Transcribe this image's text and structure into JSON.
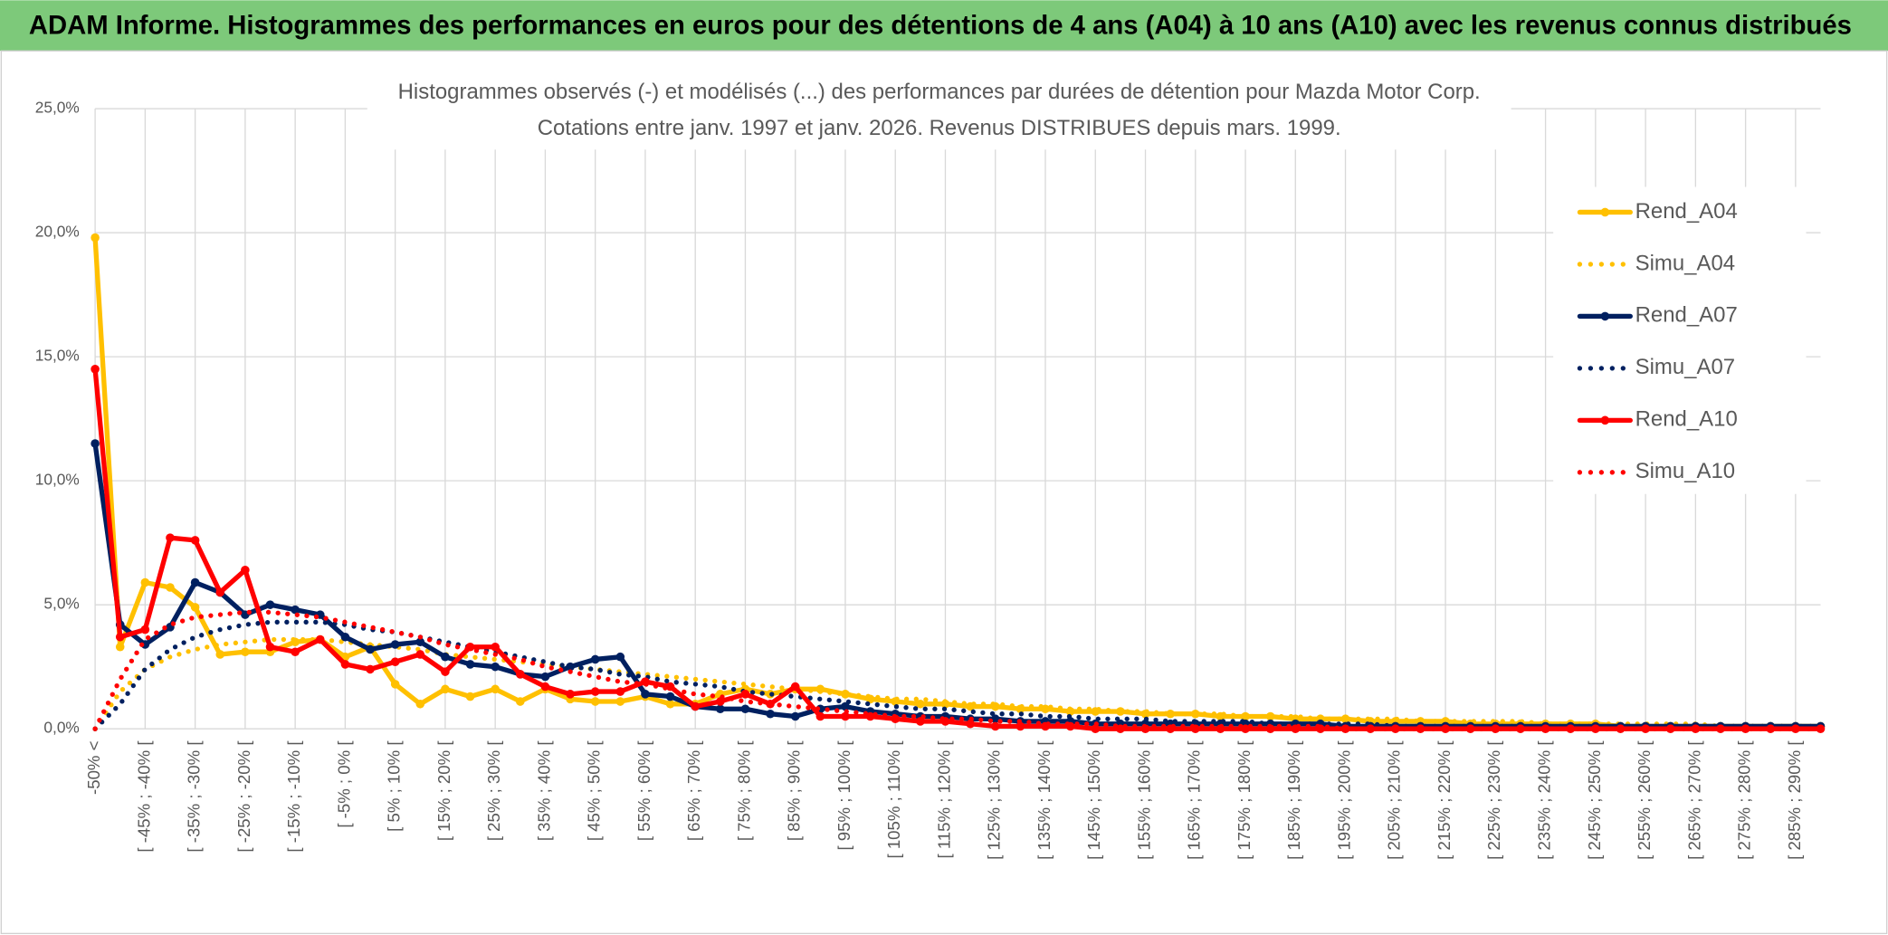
{
  "header": {
    "title": "ADAM Informe. Histogrammes des performances en euros pour des détentions de 4 ans (A04) à 10 ans (A10) avec les revenus connus distribués"
  },
  "chart_data": {
    "type": "line",
    "title": "Histogrammes observés (-) et modélisés (...) des performances par durées de détention pour Mazda Motor Corp.",
    "subtitle": "Cotations entre janv. 1997 et janv. 2026. Revenus DISTRIBUES depuis mars. 1999.",
    "categories": [
      "-50% <",
      null,
      "[ -45% ; -40% [",
      null,
      "[ -35% ; -30% [",
      null,
      "[ -25% ; -20% [",
      null,
      "[ -15% ; -10% [",
      null,
      "[ -5% ; 0% [",
      null,
      "[ 5% ; 10% [",
      null,
      "[ 15% ; 20% [",
      null,
      "[ 25% ; 30% [",
      null,
      "[ 35% ; 40% [",
      null,
      "[ 45% ; 50% [",
      null,
      "[ 55% ; 60% [",
      null,
      "[ 65% ; 70% [",
      null,
      "[ 75% ; 80% [",
      null,
      "[ 85% ; 90% [",
      null,
      "[ 95% ; 100% [",
      null,
      "[ 105% ; 110% [",
      null,
      "[ 115% ; 120% [",
      null,
      "[ 125% ; 130% [",
      null,
      "[ 135% ; 140% [",
      null,
      "[ 145% ; 150% [",
      null,
      "[ 155% ; 160% [",
      null,
      "[ 165% ; 170% [",
      null,
      "[ 175% ; 180% [",
      null,
      "[ 185% ; 190% [",
      null,
      "[ 195% ; 200% [",
      null,
      "[ 205% ; 210% [",
      null,
      "[ 215% ; 220% [",
      null,
      "[ 225% ; 230% [",
      null,
      "[ 235% ; 240% [",
      null,
      "[ 245% ; 250% [",
      null,
      "[ 255% ; 260% [",
      null,
      "[ 265% ; 270% [",
      null,
      "[ 275% ; 280% [",
      null,
      "[ 285% ; 290% [",
      null
    ],
    "series": [
      {
        "name": "Rend_A04",
        "color": "#ffc000",
        "line_style": "solid",
        "markers": true,
        "values": [
          19.8,
          3.3,
          5.9,
          5.7,
          4.9,
          3.0,
          3.1,
          3.1,
          3.5,
          3.6,
          2.9,
          3.3,
          1.8,
          1.0,
          1.6,
          1.3,
          1.6,
          1.1,
          1.6,
          1.2,
          1.1,
          1.1,
          1.3,
          1.0,
          1.0,
          1.4,
          1.6,
          1.4,
          1.6,
          1.6,
          1.4,
          1.2,
          1.1,
          1.0,
          1.0,
          0.9,
          0.9,
          0.8,
          0.8,
          0.7,
          0.7,
          0.7,
          0.6,
          0.6,
          0.6,
          0.5,
          0.5,
          0.5,
          0.4,
          0.4,
          0.4,
          0.3,
          0.3,
          0.3,
          0.3,
          0.2,
          0.2,
          0.2,
          0.2,
          0.2,
          0.2,
          0.1,
          0.1,
          0.1,
          0.1,
          0.1,
          0.1,
          0.1,
          0.1,
          0.1
        ]
      },
      {
        "name": "Simu_A04",
        "color": "#ffc000",
        "line_style": "dotted",
        "markers": false,
        "values": [
          0,
          1.5,
          2.4,
          2.9,
          3.2,
          3.4,
          3.5,
          3.6,
          3.6,
          3.6,
          3.5,
          3.4,
          3.3,
          3.2,
          3.0,
          2.9,
          2.8,
          2.7,
          2.6,
          2.5,
          2.4,
          2.3,
          2.2,
          2.1,
          2.0,
          1.9,
          1.8,
          1.7,
          1.6,
          1.5,
          1.4,
          1.3,
          1.2,
          1.2,
          1.1,
          1.0,
          1.0,
          0.9,
          0.9,
          0.8,
          0.8,
          0.7,
          0.7,
          0.6,
          0.6,
          0.6,
          0.5,
          0.5,
          0.5,
          0.4,
          0.4,
          0.4,
          0.4,
          0.3,
          0.3,
          0.3,
          0.3,
          0.3,
          0.2,
          0.2,
          0.2,
          0.2,
          0.2,
          0.2,
          0.2,
          0.1,
          0.1,
          0.1,
          0.1,
          0.1
        ]
      },
      {
        "name": "Rend_A07",
        "color": "#002060",
        "line_style": "solid",
        "markers": true,
        "values": [
          11.5,
          4.2,
          3.4,
          4.1,
          5.9,
          5.5,
          4.6,
          5.0,
          4.8,
          4.6,
          3.7,
          3.2,
          3.4,
          3.5,
          2.9,
          2.6,
          2.5,
          2.2,
          2.1,
          2.5,
          2.8,
          2.9,
          1.4,
          1.3,
          0.9,
          0.8,
          0.8,
          0.6,
          0.5,
          0.8,
          0.9,
          0.7,
          0.6,
          0.5,
          0.5,
          0.4,
          0.4,
          0.3,
          0.3,
          0.3,
          0.2,
          0.2,
          0.2,
          0.2,
          0.2,
          0.2,
          0.2,
          0.2,
          0.2,
          0.2,
          0.1,
          0.1,
          0.1,
          0.1,
          0.1,
          0.1,
          0.1,
          0.1,
          0.1,
          0.1,
          0.1,
          0.1,
          0.1,
          0.1,
          0.1,
          0.1,
          0.1,
          0.1,
          0.1,
          0.1
        ]
      },
      {
        "name": "Simu_A07",
        "color": "#002060",
        "line_style": "dotted",
        "markers": false,
        "values": [
          0,
          1.0,
          2.4,
          3.2,
          3.7,
          4.0,
          4.2,
          4.3,
          4.3,
          4.3,
          4.2,
          4.0,
          3.9,
          3.7,
          3.5,
          3.3,
          3.1,
          2.9,
          2.7,
          2.5,
          2.4,
          2.2,
          2.1,
          1.9,
          1.8,
          1.7,
          1.5,
          1.4,
          1.3,
          1.2,
          1.1,
          1.0,
          0.9,
          0.8,
          0.8,
          0.7,
          0.6,
          0.6,
          0.5,
          0.5,
          0.4,
          0.4,
          0.4,
          0.3,
          0.3,
          0.3,
          0.3,
          0.2,
          0.2,
          0.2,
          0.2,
          0.2,
          0.1,
          0.1,
          0.1,
          0.1,
          0.1,
          0.1,
          0.1,
          0.1,
          0.1,
          0.1,
          0.1,
          0.1,
          0.1,
          0.1,
          0.1,
          0.1,
          0.1,
          0.1
        ]
      },
      {
        "name": "Rend_A10",
        "color": "#ff0000",
        "line_style": "solid",
        "markers": true,
        "values": [
          14.5,
          3.7,
          4.0,
          7.7,
          7.6,
          5.5,
          6.4,
          3.3,
          3.1,
          3.6,
          2.6,
          2.4,
          2.7,
          3.0,
          2.3,
          3.3,
          3.3,
          2.2,
          1.7,
          1.4,
          1.5,
          1.5,
          1.9,
          1.7,
          0.9,
          1.1,
          1.4,
          1.0,
          1.7,
          0.5,
          0.5,
          0.5,
          0.4,
          0.3,
          0.3,
          0.2,
          0.1,
          0.1,
          0.1,
          0.1,
          0,
          0,
          0,
          0,
          0,
          0,
          0,
          0,
          0,
          0,
          0,
          0,
          0,
          0,
          0,
          0,
          0,
          0,
          0,
          0,
          0,
          0,
          0,
          0,
          0,
          0,
          0,
          0,
          0,
          0
        ]
      },
      {
        "name": "Simu_A10",
        "color": "#ff0000",
        "line_style": "dotted",
        "markers": false,
        "values": [
          0,
          2.0,
          3.6,
          4.2,
          4.5,
          4.6,
          4.7,
          4.7,
          4.6,
          4.5,
          4.3,
          4.1,
          3.9,
          3.7,
          3.4,
          3.2,
          3.0,
          2.8,
          2.5,
          2.3,
          2.1,
          1.9,
          1.8,
          1.6,
          1.4,
          1.3,
          1.1,
          1.0,
          0.9,
          0.8,
          0.7,
          0.6,
          0.5,
          0.5,
          0.4,
          0.4,
          0.3,
          0.3,
          0.2,
          0.2,
          0.2,
          0.1,
          0.1,
          0.1,
          0.1,
          0.1,
          0.1,
          0.1,
          0.1,
          0.1,
          0,
          0,
          0,
          0,
          0,
          0,
          0,
          0,
          0,
          0,
          0,
          0,
          0,
          0,
          0,
          0,
          0,
          0,
          0,
          0
        ]
      }
    ],
    "ylim": [
      0,
      25
    ],
    "yticks": [
      {
        "value": 0,
        "label": "0,0%"
      },
      {
        "value": 5,
        "label": "5,0%"
      },
      {
        "value": 10,
        "label": "10,0%"
      },
      {
        "value": 15,
        "label": "15,0%"
      },
      {
        "value": 20,
        "label": "20,0%"
      },
      {
        "value": 25,
        "label": "25,0%"
      }
    ],
    "grid": true,
    "legend": "right"
  }
}
